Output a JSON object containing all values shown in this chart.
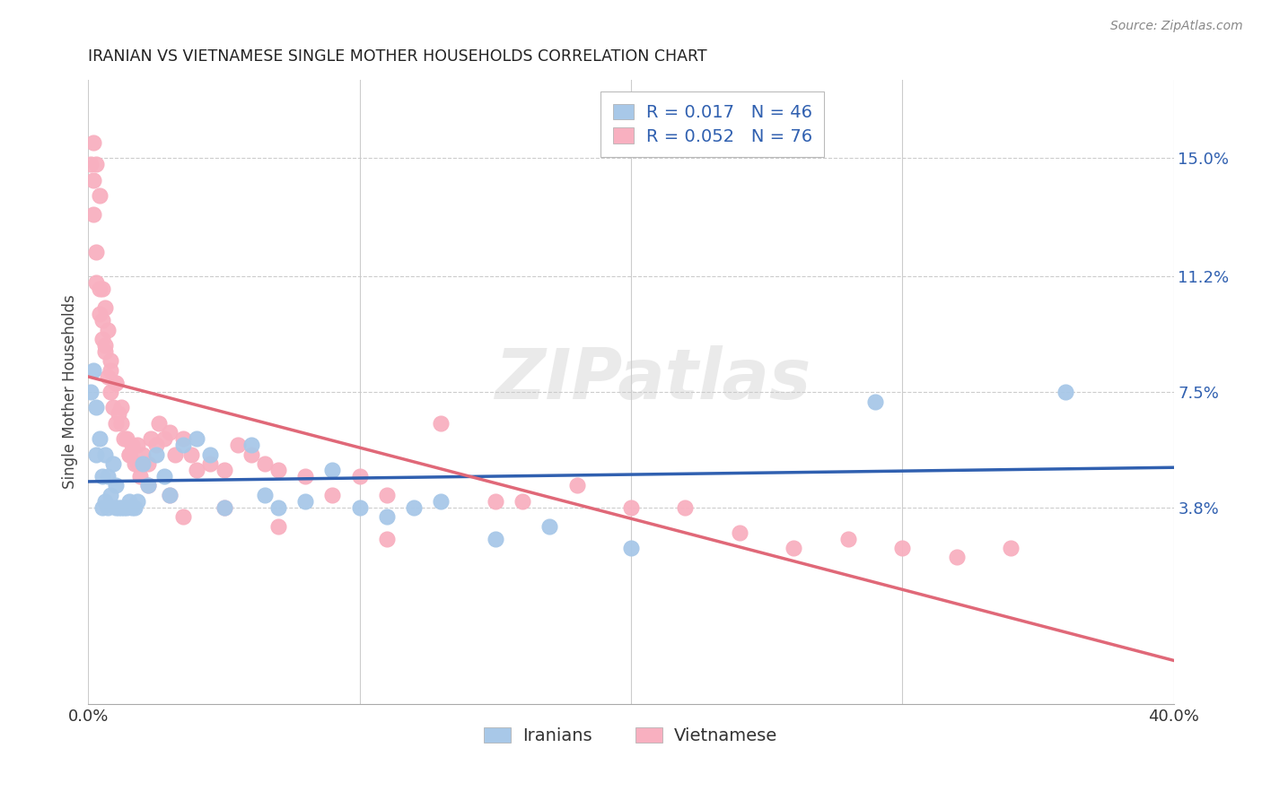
{
  "title": "IRANIAN VS VIETNAMESE SINGLE MOTHER HOUSEHOLDS CORRELATION CHART",
  "source": "Source: ZipAtlas.com",
  "ylabel": "Single Mother Households",
  "xlim": [
    0.0,
    0.4
  ],
  "ylim": [
    -0.025,
    0.175
  ],
  "yticks": [
    0.038,
    0.075,
    0.112,
    0.15
  ],
  "ytick_labels": [
    "3.8%",
    "7.5%",
    "11.2%",
    "15.0%"
  ],
  "xticks": [
    0.0,
    0.1,
    0.2,
    0.3,
    0.4
  ],
  "xtick_labels": [
    "0.0%",
    "",
    "",
    "",
    "40.0%"
  ],
  "background_color": "#ffffff",
  "watermark": "ZIPatlas",
  "iranian_color": "#a8c8e8",
  "vietnamese_color": "#f8b0c0",
  "iranian_line_color": "#3060b0",
  "vietnamese_line_color": "#e06878",
  "R_iranian": 0.017,
  "N_iranian": 46,
  "R_vietnamese": 0.052,
  "N_vietnamese": 76,
  "iranians_label": "Iranians",
  "vietnamese_label": "Vietnamese",
  "legend_text_color": "#3060b0",
  "title_color": "#222222",
  "source_color": "#888888",
  "ylabel_color": "#444444",
  "xtick_color": "#333333",
  "ytick_color": "#3060b0",
  "ir_x": [
    0.001,
    0.002,
    0.003,
    0.003,
    0.004,
    0.005,
    0.005,
    0.006,
    0.006,
    0.007,
    0.007,
    0.008,
    0.009,
    0.01,
    0.01,
    0.011,
    0.012,
    0.013,
    0.014,
    0.015,
    0.016,
    0.017,
    0.018,
    0.02,
    0.022,
    0.025,
    0.028,
    0.03,
    0.035,
    0.04,
    0.045,
    0.05,
    0.06,
    0.065,
    0.07,
    0.08,
    0.09,
    0.1,
    0.11,
    0.12,
    0.13,
    0.15,
    0.17,
    0.2,
    0.29,
    0.36
  ],
  "ir_y": [
    0.075,
    0.082,
    0.07,
    0.055,
    0.06,
    0.038,
    0.048,
    0.04,
    0.055,
    0.038,
    0.048,
    0.042,
    0.052,
    0.038,
    0.045,
    0.038,
    0.038,
    0.038,
    0.038,
    0.04,
    0.038,
    0.038,
    0.04,
    0.052,
    0.045,
    0.055,
    0.048,
    0.042,
    0.058,
    0.06,
    0.055,
    0.038,
    0.058,
    0.042,
    0.038,
    0.04,
    0.05,
    0.038,
    0.035,
    0.038,
    0.04,
    0.028,
    0.032,
    0.025,
    0.072,
    0.075
  ],
  "vn_x": [
    0.001,
    0.002,
    0.002,
    0.003,
    0.003,
    0.004,
    0.004,
    0.005,
    0.005,
    0.006,
    0.006,
    0.007,
    0.007,
    0.008,
    0.008,
    0.009,
    0.01,
    0.01,
    0.011,
    0.012,
    0.013,
    0.014,
    0.015,
    0.016,
    0.017,
    0.018,
    0.019,
    0.02,
    0.022,
    0.023,
    0.025,
    0.026,
    0.028,
    0.03,
    0.032,
    0.035,
    0.038,
    0.04,
    0.045,
    0.05,
    0.055,
    0.06,
    0.065,
    0.07,
    0.08,
    0.09,
    0.1,
    0.11,
    0.13,
    0.15,
    0.16,
    0.18,
    0.2,
    0.22,
    0.24,
    0.26,
    0.28,
    0.3,
    0.32,
    0.34,
    0.002,
    0.003,
    0.004,
    0.005,
    0.006,
    0.008,
    0.01,
    0.012,
    0.015,
    0.018,
    0.022,
    0.03,
    0.035,
    0.05,
    0.07,
    0.11
  ],
  "vn_y": [
    0.148,
    0.143,
    0.132,
    0.12,
    0.11,
    0.1,
    0.138,
    0.092,
    0.108,
    0.088,
    0.102,
    0.08,
    0.095,
    0.075,
    0.085,
    0.07,
    0.065,
    0.078,
    0.068,
    0.065,
    0.06,
    0.06,
    0.055,
    0.058,
    0.052,
    0.058,
    0.048,
    0.055,
    0.052,
    0.06,
    0.058,
    0.065,
    0.06,
    0.062,
    0.055,
    0.06,
    0.055,
    0.05,
    0.052,
    0.05,
    0.058,
    0.055,
    0.052,
    0.05,
    0.048,
    0.042,
    0.048,
    0.042,
    0.065,
    0.04,
    0.04,
    0.045,
    0.038,
    0.038,
    0.03,
    0.025,
    0.028,
    0.025,
    0.022,
    0.025,
    0.155,
    0.148,
    0.108,
    0.098,
    0.09,
    0.082,
    0.078,
    0.07,
    0.055,
    0.052,
    0.045,
    0.042,
    0.035,
    0.038,
    0.032,
    0.028
  ]
}
